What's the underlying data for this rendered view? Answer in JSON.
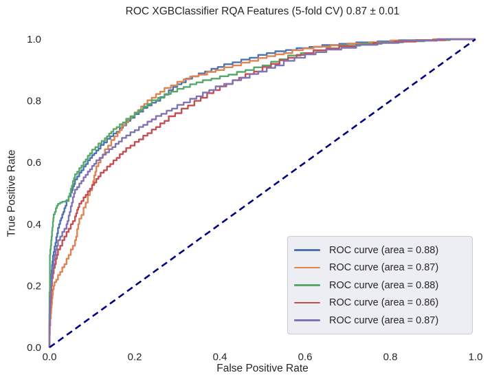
{
  "chart_data": {
    "type": "line",
    "title": "ROC XGBClassifier RQA Features (5-fold CV) 0.87 ± 0.01",
    "xlabel": "False Positive Rate",
    "ylabel": "True Positive Rate",
    "xlim": [
      0.0,
      1.0
    ],
    "ylim": [
      0.0,
      1.0
    ],
    "x_ticks": [
      "0.0",
      "0.2",
      "0.4",
      "0.6",
      "0.8",
      "1.0"
    ],
    "y_ticks": [
      "0.0",
      "0.2",
      "0.4",
      "0.6",
      "0.8",
      "1.0"
    ],
    "grid": false,
    "legend_position": "lower right",
    "text_color": "#262626",
    "reference_line": {
      "name": "chance-diagonal",
      "style": "dashed",
      "color": "#000080",
      "points": [
        [
          0,
          0
        ],
        [
          1,
          1
        ]
      ]
    },
    "series": [
      {
        "label": "ROC curve (area = 0.88)",
        "area": 0.88,
        "color": "#4C72B0",
        "points": [
          [
            0,
            0
          ],
          [
            0.002,
            0.18
          ],
          [
            0.004,
            0.22
          ],
          [
            0.006,
            0.25
          ],
          [
            0.008,
            0.28
          ],
          [
            0.012,
            0.31
          ],
          [
            0.016,
            0.34
          ],
          [
            0.02,
            0.37
          ],
          [
            0.025,
            0.4
          ],
          [
            0.03,
            0.42
          ],
          [
            0.035,
            0.44
          ],
          [
            0.04,
            0.46
          ],
          [
            0.05,
            0.49
          ],
          [
            0.055,
            0.51
          ],
          [
            0.06,
            0.53
          ],
          [
            0.07,
            0.555
          ],
          [
            0.08,
            0.575
          ],
          [
            0.09,
            0.595
          ],
          [
            0.1,
            0.615
          ],
          [
            0.11,
            0.63
          ],
          [
            0.12,
            0.645
          ],
          [
            0.135,
            0.665
          ],
          [
            0.15,
            0.685
          ],
          [
            0.165,
            0.7
          ],
          [
            0.18,
            0.72
          ],
          [
            0.2,
            0.745
          ],
          [
            0.22,
            0.765
          ],
          [
            0.24,
            0.785
          ],
          [
            0.26,
            0.8
          ],
          [
            0.28,
            0.82
          ],
          [
            0.3,
            0.845
          ],
          [
            0.32,
            0.86
          ],
          [
            0.35,
            0.88
          ],
          [
            0.38,
            0.895
          ],
          [
            0.41,
            0.91
          ],
          [
            0.45,
            0.925
          ],
          [
            0.49,
            0.94
          ],
          [
            0.53,
            0.955
          ],
          [
            0.58,
            0.965
          ],
          [
            0.64,
            0.975
          ],
          [
            0.72,
            0.985
          ],
          [
            0.82,
            0.993
          ],
          [
            1,
            1
          ]
        ]
      },
      {
        "label": "ROC curve (area = 0.87)",
        "area": 0.87,
        "color": "#DD8452",
        "points": [
          [
            0,
            0
          ],
          [
            0.002,
            0.07
          ],
          [
            0.004,
            0.11
          ],
          [
            0.006,
            0.14
          ],
          [
            0.008,
            0.17
          ],
          [
            0.012,
            0.2
          ],
          [
            0.02,
            0.22
          ],
          [
            0.03,
            0.245
          ],
          [
            0.04,
            0.27
          ],
          [
            0.05,
            0.3
          ],
          [
            0.06,
            0.33
          ],
          [
            0.065,
            0.36
          ],
          [
            0.07,
            0.4
          ],
          [
            0.08,
            0.43
          ],
          [
            0.09,
            0.47
          ],
          [
            0.1,
            0.51
          ],
          [
            0.105,
            0.54
          ],
          [
            0.11,
            0.57
          ],
          [
            0.12,
            0.6
          ],
          [
            0.13,
            0.625
          ],
          [
            0.145,
            0.655
          ],
          [
            0.16,
            0.685
          ],
          [
            0.17,
            0.705
          ],
          [
            0.185,
            0.73
          ],
          [
            0.2,
            0.75
          ],
          [
            0.215,
            0.77
          ],
          [
            0.23,
            0.79
          ],
          [
            0.25,
            0.81
          ],
          [
            0.27,
            0.83
          ],
          [
            0.3,
            0.85
          ],
          [
            0.33,
            0.87
          ],
          [
            0.37,
            0.885
          ],
          [
            0.41,
            0.9
          ],
          [
            0.45,
            0.915
          ],
          [
            0.49,
            0.93
          ],
          [
            0.53,
            0.945
          ],
          [
            0.57,
            0.955
          ],
          [
            0.62,
            0.97
          ],
          [
            0.7,
            0.98
          ],
          [
            0.8,
            0.99
          ],
          [
            1,
            1
          ]
        ]
      },
      {
        "label": "ROC curve (area = 0.88)",
        "area": 0.88,
        "color": "#55A868",
        "points": [
          [
            0,
            0
          ],
          [
            0.002,
            0.3
          ],
          [
            0.004,
            0.33
          ],
          [
            0.006,
            0.36
          ],
          [
            0.008,
            0.39
          ],
          [
            0.01,
            0.42
          ],
          [
            0.015,
            0.44
          ],
          [
            0.02,
            0.46
          ],
          [
            0.03,
            0.47
          ],
          [
            0.045,
            0.475
          ],
          [
            0.05,
            0.5
          ],
          [
            0.055,
            0.525
          ],
          [
            0.06,
            0.55
          ],
          [
            0.07,
            0.57
          ],
          [
            0.08,
            0.59
          ],
          [
            0.09,
            0.61
          ],
          [
            0.1,
            0.63
          ],
          [
            0.115,
            0.65
          ],
          [
            0.13,
            0.67
          ],
          [
            0.14,
            0.685
          ],
          [
            0.15,
            0.7
          ],
          [
            0.165,
            0.715
          ],
          [
            0.18,
            0.73
          ],
          [
            0.2,
            0.75
          ],
          [
            0.22,
            0.77
          ],
          [
            0.24,
            0.79
          ],
          [
            0.27,
            0.81
          ],
          [
            0.3,
            0.83
          ],
          [
            0.33,
            0.845
          ],
          [
            0.36,
            0.86
          ],
          [
            0.4,
            0.872
          ],
          [
            0.44,
            0.885
          ],
          [
            0.48,
            0.9
          ],
          [
            0.52,
            0.915
          ],
          [
            0.56,
            0.935
          ],
          [
            0.62,
            0.955
          ],
          [
            0.68,
            0.97
          ],
          [
            0.78,
            0.985
          ],
          [
            0.88,
            0.993
          ],
          [
            1,
            1
          ]
        ]
      },
      {
        "label": "ROC curve (area = 0.86)",
        "area": 0.86,
        "color": "#C44E52",
        "points": [
          [
            0,
            0
          ],
          [
            0.002,
            0.12
          ],
          [
            0.004,
            0.16
          ],
          [
            0.006,
            0.2
          ],
          [
            0.01,
            0.24
          ],
          [
            0.015,
            0.27
          ],
          [
            0.02,
            0.3
          ],
          [
            0.03,
            0.33
          ],
          [
            0.04,
            0.36
          ],
          [
            0.05,
            0.385
          ],
          [
            0.06,
            0.41
          ],
          [
            0.065,
            0.435
          ],
          [
            0.07,
            0.455
          ],
          [
            0.08,
            0.475
          ],
          [
            0.09,
            0.495
          ],
          [
            0.1,
            0.515
          ],
          [
            0.11,
            0.535
          ],
          [
            0.12,
            0.555
          ],
          [
            0.135,
            0.575
          ],
          [
            0.15,
            0.595
          ],
          [
            0.165,
            0.615
          ],
          [
            0.18,
            0.635
          ],
          [
            0.2,
            0.655
          ],
          [
            0.22,
            0.675
          ],
          [
            0.24,
            0.695
          ],
          [
            0.26,
            0.715
          ],
          [
            0.28,
            0.735
          ],
          [
            0.31,
            0.76
          ],
          [
            0.34,
            0.785
          ],
          [
            0.37,
            0.81
          ],
          [
            0.4,
            0.835
          ],
          [
            0.43,
            0.855
          ],
          [
            0.46,
            0.875
          ],
          [
            0.5,
            0.895
          ],
          [
            0.54,
            0.92
          ],
          [
            0.58,
            0.94
          ],
          [
            0.62,
            0.955
          ],
          [
            0.68,
            0.97
          ],
          [
            0.76,
            0.982
          ],
          [
            0.86,
            0.992
          ],
          [
            1,
            1
          ]
        ]
      },
      {
        "label": "ROC curve (area = 0.87)",
        "area": 0.87,
        "color": "#8172B3",
        "points": [
          [
            0,
            0
          ],
          [
            0.002,
            0.14
          ],
          [
            0.004,
            0.18
          ],
          [
            0.006,
            0.22
          ],
          [
            0.01,
            0.26
          ],
          [
            0.015,
            0.3
          ],
          [
            0.02,
            0.33
          ],
          [
            0.03,
            0.36
          ],
          [
            0.04,
            0.385
          ],
          [
            0.045,
            0.41
          ],
          [
            0.05,
            0.44
          ],
          [
            0.055,
            0.47
          ],
          [
            0.06,
            0.5
          ],
          [
            0.07,
            0.52
          ],
          [
            0.08,
            0.54
          ],
          [
            0.09,
            0.56
          ],
          [
            0.1,
            0.578
          ],
          [
            0.11,
            0.596
          ],
          [
            0.125,
            0.615
          ],
          [
            0.14,
            0.633
          ],
          [
            0.155,
            0.65
          ],
          [
            0.17,
            0.668
          ],
          [
            0.19,
            0.688
          ],
          [
            0.21,
            0.705
          ],
          [
            0.23,
            0.722
          ],
          [
            0.25,
            0.74
          ],
          [
            0.275,
            0.758
          ],
          [
            0.3,
            0.775
          ],
          [
            0.33,
            0.795
          ],
          [
            0.36,
            0.815
          ],
          [
            0.39,
            0.835
          ],
          [
            0.43,
            0.855
          ],
          [
            0.47,
            0.875
          ],
          [
            0.51,
            0.895
          ],
          [
            0.55,
            0.915
          ],
          [
            0.6,
            0.94
          ],
          [
            0.65,
            0.958
          ],
          [
            0.72,
            0.972
          ],
          [
            0.82,
            0.988
          ],
          [
            1,
            1
          ]
        ]
      }
    ]
  }
}
